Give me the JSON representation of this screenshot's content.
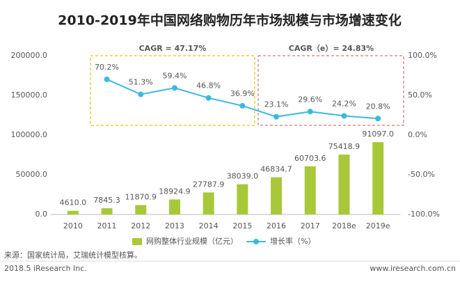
{
  "chart_data": {
    "type": "bar",
    "title": "2010-2019年中国网络购物历年市场规模与市场增速变化",
    "categories": [
      "2010",
      "2011",
      "2012",
      "2013",
      "2014",
      "2015",
      "2016",
      "2017",
      "2018e",
      "2019e"
    ],
    "series": [
      {
        "name": "网购整体行业规模（亿元）",
        "type": "bar",
        "color": "#a8c83a",
        "values": [
          4610.0,
          7845.3,
          11870.9,
          18924.9,
          27787.9,
          38039.0,
          46834.7,
          60703.6,
          75418.9,
          91097.0
        ],
        "value_labels": [
          "4610.0",
          "7845.3",
          "11870.9",
          "18924.9",
          "27787.9",
          "38039.0",
          "46834.7",
          "60703.6",
          "75418.9",
          "91097.0"
        ]
      },
      {
        "name": "增长率（%）",
        "type": "line",
        "axis": "y2",
        "color": "#3cb8e0",
        "values": [
          null,
          70.2,
          51.3,
          59.4,
          46.8,
          36.9,
          23.1,
          29.6,
          24.2,
          20.8
        ],
        "value_labels": [
          null,
          "70.2%",
          "51.3%",
          "59.4%",
          "46.8%",
          "36.9%",
          "23.1%",
          "29.6%",
          "24.2%",
          "20.8%"
        ]
      }
    ],
    "ylim": [
      0,
      200000
    ],
    "yticks": [
      {
        "value": 0,
        "label": "0.0"
      },
      {
        "value": 50000,
        "label": "50000.0"
      },
      {
        "value": 100000,
        "label": "100000.0"
      },
      {
        "value": 150000,
        "label": "150000.0"
      },
      {
        "value": 200000,
        "label": "200000.0"
      }
    ],
    "y2lim": [
      -100,
      100
    ],
    "y2ticks": [
      {
        "value": -100,
        "label": "-100.0%"
      },
      {
        "value": -50,
        "label": "-50.0%"
      },
      {
        "value": 0,
        "label": "0.0%"
      },
      {
        "value": 50,
        "label": "50.0%"
      },
      {
        "value": 100,
        "label": "100.0%"
      }
    ],
    "grid": false,
    "legend": "bottom",
    "annotations": [
      "CAGR = 47.17%",
      "CAGR（e）= 24.83%"
    ],
    "footer": {
      "source": "来源：国家统计局，艾瑞统计模型核算。",
      "copyright": "2018.5 iResearch Inc.",
      "website": "www.iresearch.com.cn"
    }
  }
}
